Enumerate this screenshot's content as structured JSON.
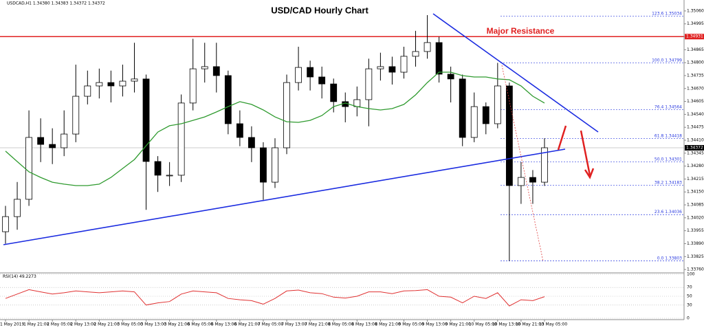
{
  "chart_data": {
    "type": "candlestick",
    "title": "USD/CAD Hourly Chart",
    "header": "USDCAD,H1 1.34380 1.34383 1.34372 1.34372",
    "categories": [
      "1 May 2019",
      null,
      "1 May 21:00",
      null,
      "2 May 05:00",
      null,
      "2 May 13:00",
      null,
      "2 May 21:00",
      null,
      "3 May 05:00",
      null,
      "3 May 13:00",
      null,
      "3 May 21:00",
      null,
      "6 May 05:00",
      null,
      "6 May 13:00",
      null,
      "6 May 21:00",
      null,
      "7 May 05:00",
      null,
      "7 May 13:00",
      null,
      "7 May 21:00",
      null,
      "8 May 05:00",
      null,
      "8 May 13:00",
      null,
      "8 May 21:00",
      null,
      "9 May 05:00",
      null,
      "9 May 13:00",
      null,
      "9 May 21:00",
      null,
      "10 May 05:00",
      null,
      "10 May 13:00",
      null,
      "10 May 21:00",
      null,
      "13 May 05:00"
    ],
    "open": [
      1.3395,
      1.34026,
      1.34113,
      1.34424,
      1.34389,
      1.34372,
      1.34441,
      1.34631,
      1.34683,
      1.347,
      1.34683,
      1.34707,
      1.34718,
      1.34303,
      1.34234,
      1.34234,
      1.34597,
      1.34769,
      1.3478,
      1.34735,
      1.34493,
      1.34424,
      1.34372,
      1.34199,
      1.34372,
      1.347,
      1.34776,
      1.34728,
      1.34693,
      1.34604,
      1.34579,
      1.34614,
      1.34769,
      1.3478,
      1.34752,
      1.34832,
      1.34856,
      1.34901,
      1.34742,
      1.34718,
      1.34424,
      1.34579,
      1.34493,
      1.34683,
      1.34182,
      1.34223,
      1.34199
    ],
    "high": [
      1.3408,
      1.342,
      1.3456,
      1.3452,
      1.3447,
      1.3456,
      1.3479,
      1.3476,
      1.3477,
      1.3476,
      1.3479,
      1.349,
      1.3474,
      1.3433,
      1.343,
      1.3464,
      1.3492,
      1.349,
      1.349,
      1.3476,
      1.3456,
      1.3448,
      1.344,
      1.3442,
      1.3474,
      1.3488,
      1.3481,
      1.3478,
      1.3472,
      1.3465,
      1.3468,
      1.3482,
      1.3485,
      1.3483,
      1.3488,
      1.3496,
      1.35039,
      1.3493,
      1.3478,
      1.3474,
      1.3465,
      1.346,
      1.34799,
      1.347,
      1.343,
      1.3426,
      1.3442
    ],
    "low": [
      1.3389,
      1.3396,
      1.3408,
      1.343,
      1.3429,
      1.3433,
      1.344,
      1.3459,
      1.3462,
      1.346,
      1.3463,
      1.3465,
      1.3406,
      1.3415,
      1.3418,
      1.342,
      1.3456,
      1.347,
      1.3465,
      1.3444,
      1.3438,
      1.343,
      1.3411,
      1.3417,
      1.3434,
      1.3466,
      1.3466,
      1.3462,
      1.3455,
      1.345,
      1.3453,
      1.3448,
      1.3471,
      1.3469,
      1.3472,
      1.3478,
      1.3482,
      1.347,
      1.346,
      1.3438,
      1.344,
      1.3444,
      1.3447,
      1.33803,
      1.3409,
      1.3409,
      1.3418
    ],
    "close": [
      1.34026,
      1.34113,
      1.34424,
      1.34389,
      1.34372,
      1.34441,
      1.34631,
      1.34683,
      1.347,
      1.34683,
      1.34707,
      1.34718,
      1.34303,
      1.34234,
      1.34234,
      1.34597,
      1.34769,
      1.3478,
      1.34735,
      1.34493,
      1.34424,
      1.34372,
      1.34199,
      1.34372,
      1.347,
      1.34776,
      1.34728,
      1.34693,
      1.34604,
      1.34579,
      1.34614,
      1.34769,
      1.3478,
      1.34752,
      1.34832,
      1.34856,
      1.34901,
      1.34742,
      1.34718,
      1.34424,
      1.34579,
      1.34493,
      1.34683,
      1.34182,
      1.34223,
      1.34199,
      1.34372
    ],
    "up_color": "#ffffff",
    "down_color": "#000000",
    "ma": {
      "color": "#2e9a2e",
      "values": [
        1.34355,
        1.34303,
        1.34251,
        1.34223,
        1.34199,
        1.34189,
        1.34182,
        1.34182,
        1.34189,
        1.34223,
        1.34268,
        1.34313,
        1.34382,
        1.34451,
        1.34483,
        1.34493,
        1.3451,
        1.34527,
        1.34552,
        1.34579,
        1.34604,
        1.3459,
        1.34562,
        1.34527,
        1.34503,
        1.345,
        1.3451,
        1.34534,
        1.34579,
        1.34597,
        1.34579,
        1.34569,
        1.34562,
        1.34569,
        1.3459,
        1.34638,
        1.347,
        1.34752,
        1.34752,
        1.34735,
        1.34728,
        1.34728,
        1.34718,
        1.34714,
        1.34683,
        1.34631,
        1.34597
      ]
    },
    "ylim": [
      1.33743,
      1.35115
    ],
    "yticks": [
      {
        "value": 1.3506,
        "label": "1.35060"
      },
      1.34995,
      {
        "value": 1.3493,
        "label": "1.34930"
      },
      1.34865,
      {
        "value": 1.348,
        "label": "1.34800"
      },
      1.34735,
      {
        "value": 1.3467,
        "label": "1.34670"
      },
      1.34605,
      {
        "value": 1.3454,
        "label": "1.34540"
      },
      1.34475,
      {
        "value": 1.3441,
        "label": "1.34410"
      },
      1.34345,
      {
        "value": 1.3428,
        "label": "1.34280"
      },
      1.34215,
      {
        "value": 1.3415,
        "label": "1.34150"
      },
      1.34085,
      {
        "value": 1.3402,
        "label": "1.34020"
      },
      1.33955,
      {
        "value": 1.3389,
        "label": "1.33890"
      },
      1.33825,
      {
        "value": 1.3376,
        "label": "1.33760"
      }
    ],
    "resistance": {
      "label": "Major Resistance",
      "value": 1.34931,
      "color": "#e02020"
    },
    "current_price": 1.34372,
    "fib": [
      {
        "ratio": "123.6",
        "value": 1.35034
      },
      {
        "ratio": "100.0",
        "value": 1.34799
      },
      {
        "ratio": "76.4",
        "value": 1.34564
      },
      {
        "ratio": "61.8",
        "value": 1.34418
      },
      {
        "ratio": "50.0",
        "value": 1.34301
      },
      {
        "ratio": "38.2",
        "value": 1.34183
      },
      {
        "ratio": "23.6",
        "value": 1.34036
      },
      {
        "ratio": "0.0",
        "value": 1.33803
      }
    ],
    "rsi": {
      "name": "RSI(14)",
      "current": 49.2273,
      "color": "#e03030",
      "values": [
        45,
        55,
        65,
        60,
        55,
        58,
        62,
        60,
        58,
        60,
        62,
        60,
        30,
        35,
        38,
        55,
        62,
        60,
        58,
        45,
        42,
        40,
        32,
        45,
        62,
        64,
        58,
        56,
        48,
        46,
        50,
        60,
        60,
        56,
        62,
        63,
        65,
        50,
        48,
        35,
        50,
        45,
        58,
        28,
        42,
        40,
        49
      ],
      "ylim": [
        0,
        100
      ],
      "yticks": [
        0,
        30,
        50,
        70,
        100
      ]
    }
  }
}
